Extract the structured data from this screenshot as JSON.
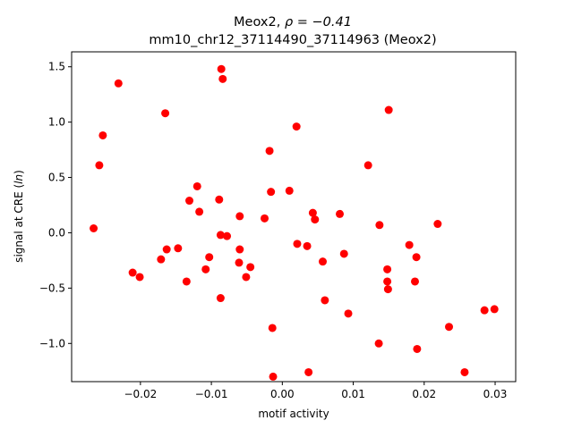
{
  "chart_data": {
    "type": "scatter",
    "title_line1": "Meox2, ",
    "title_rho": "ρ = −0.41",
    "title_line2": "mm10_chr12_37114490_37114963 (Meox2)",
    "xlabel": "motif activity",
    "ylabel_prefix": "signal at CRE (",
    "ylabel_italic": "ln",
    "ylabel_suffix": ")",
    "xlim": [
      -0.0297,
      0.0329
    ],
    "ylim": [
      -1.345,
      1.635
    ],
    "xticks": [
      {
        "value": -0.02,
        "label": "−0.02"
      },
      {
        "value": -0.01,
        "label": "−0.01"
      },
      {
        "value": 0.0,
        "label": "0.00"
      },
      {
        "value": 0.01,
        "label": "0.01"
      },
      {
        "value": 0.02,
        "label": "0.02"
      },
      {
        "value": 0.03,
        "label": "0.03"
      }
    ],
    "yticks": [
      {
        "value": -1.0,
        "label": "−1.0"
      },
      {
        "value": -0.5,
        "label": "−0.5"
      },
      {
        "value": 0.0,
        "label": "0.0"
      },
      {
        "value": 0.5,
        "label": "0.5"
      },
      {
        "value": 1.0,
        "label": "1.0"
      },
      {
        "value": 1.5,
        "label": "1.5"
      }
    ],
    "marker_color": "#ff0000",
    "points": [
      {
        "x": -0.0266,
        "y": 0.04
      },
      {
        "x": -0.0258,
        "y": 0.61
      },
      {
        "x": -0.0253,
        "y": 0.88
      },
      {
        "x": -0.0231,
        "y": 1.35
      },
      {
        "x": -0.0211,
        "y": -0.36
      },
      {
        "x": -0.0201,
        "y": -0.4
      },
      {
        "x": -0.0171,
        "y": -0.24
      },
      {
        "x": -0.0165,
        "y": 1.08
      },
      {
        "x": -0.0163,
        "y": -0.15
      },
      {
        "x": -0.0147,
        "y": -0.14
      },
      {
        "x": -0.0135,
        "y": -0.44
      },
      {
        "x": -0.0131,
        "y": 0.29
      },
      {
        "x": -0.012,
        "y": 0.42
      },
      {
        "x": -0.0117,
        "y": 0.19
      },
      {
        "x": -0.0108,
        "y": -0.33
      },
      {
        "x": -0.0103,
        "y": -0.22
      },
      {
        "x": -0.0089,
        "y": 0.3
      },
      {
        "x": -0.0087,
        "y": -0.02
      },
      {
        "x": -0.0086,
        "y": 1.48
      },
      {
        "x": -0.0084,
        "y": 1.39
      },
      {
        "x": -0.0087,
        "y": -0.59
      },
      {
        "x": -0.0078,
        "y": -0.03
      },
      {
        "x": -0.006,
        "y": 0.15
      },
      {
        "x": -0.006,
        "y": -0.15
      },
      {
        "x": -0.0061,
        "y": -0.27
      },
      {
        "x": -0.0051,
        "y": -0.4
      },
      {
        "x": -0.0045,
        "y": -0.31
      },
      {
        "x": -0.0025,
        "y": 0.13
      },
      {
        "x": -0.0018,
        "y": 0.74
      },
      {
        "x": -0.0016,
        "y": 0.37
      },
      {
        "x": -0.0014,
        "y": -0.86
      },
      {
        "x": -0.0013,
        "y": -1.3
      },
      {
        "x": 0.001,
        "y": 0.38
      },
      {
        "x": 0.002,
        "y": 0.96
      },
      {
        "x": 0.0021,
        "y": -0.1
      },
      {
        "x": 0.0035,
        "y": -0.12
      },
      {
        "x": 0.0037,
        "y": -1.26
      },
      {
        "x": 0.0043,
        "y": 0.18
      },
      {
        "x": 0.0046,
        "y": 0.12
      },
      {
        "x": 0.0057,
        "y": -0.26
      },
      {
        "x": 0.006,
        "y": -0.61
      },
      {
        "x": 0.0081,
        "y": 0.17
      },
      {
        "x": 0.0087,
        "y": -0.19
      },
      {
        "x": 0.0093,
        "y": -0.73
      },
      {
        "x": 0.0121,
        "y": 0.61
      },
      {
        "x": 0.0136,
        "y": -1.0
      },
      {
        "x": 0.0137,
        "y": 0.07
      },
      {
        "x": 0.0148,
        "y": -0.33
      },
      {
        "x": 0.0148,
        "y": -0.44
      },
      {
        "x": 0.0149,
        "y": -0.51
      },
      {
        "x": 0.015,
        "y": 1.11
      },
      {
        "x": 0.0179,
        "y": -0.11
      },
      {
        "x": 0.0187,
        "y": -0.44
      },
      {
        "x": 0.0189,
        "y": -0.22
      },
      {
        "x": 0.019,
        "y": -1.05
      },
      {
        "x": 0.0219,
        "y": 0.08
      },
      {
        "x": 0.0235,
        "y": -0.85
      },
      {
        "x": 0.0257,
        "y": -1.26
      },
      {
        "x": 0.0285,
        "y": -0.7
      },
      {
        "x": 0.0299,
        "y": -0.69
      }
    ]
  }
}
